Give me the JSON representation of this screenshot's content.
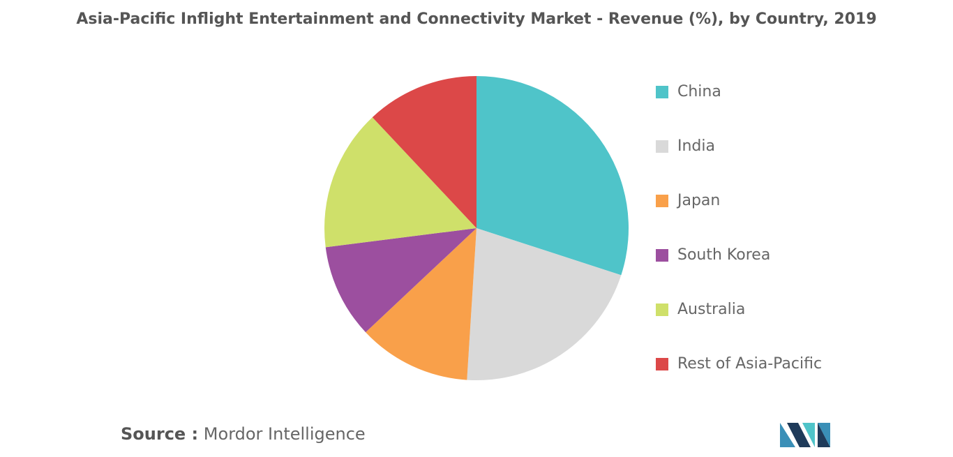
{
  "chart_data": {
    "type": "pie",
    "title": "Asia-Pacific Inflight Entertainment and Connectivity Market - Revenue (%), by Country, 2019",
    "categories": [
      "China",
      "India",
      "Japan",
      "South Korea",
      "Australia",
      "Rest of Asia-Pacific"
    ],
    "values": [
      30,
      21,
      12,
      10,
      15,
      12
    ],
    "colors": [
      "#4fc4c9",
      "#d9d9d9",
      "#f9a04a",
      "#9c4f9f",
      "#cfe06a",
      "#dc4848"
    ],
    "legend": "right",
    "source_label": "Source :",
    "source": "Mordor Intelligence"
  }
}
